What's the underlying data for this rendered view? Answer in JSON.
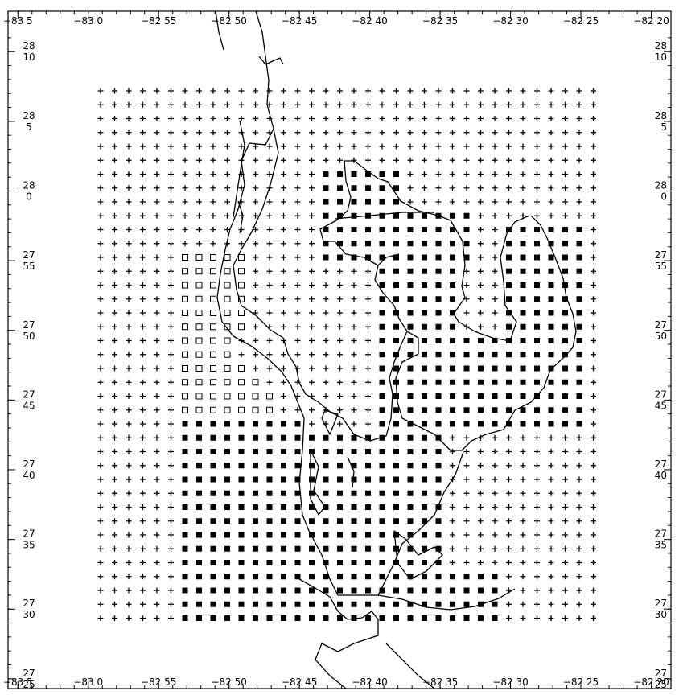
{
  "map": {
    "lon_labels": [
      {
        "text": "−83 5",
        "lon": -83.0833
      },
      {
        "text": "−83 0",
        "lon": -83.0
      },
      {
        "text": "−82 55",
        "lon": -82.9167
      },
      {
        "text": "−82 50",
        "lon": -82.8333
      },
      {
        "text": "−82 45",
        "lon": -82.75
      },
      {
        "text": "−82 40",
        "lon": -82.6667
      },
      {
        "text": "−82 35",
        "lon": -82.5833
      },
      {
        "text": "−82 30",
        "lon": -82.5
      },
      {
        "text": "−82 25",
        "lon": -82.4167
      },
      {
        "text": "−82 20",
        "lon": -82.3333
      }
    ],
    "lat_labels": [
      {
        "deg": "28",
        "min": "10",
        "lat": 28.1667
      },
      {
        "deg": "28",
        "min": "5",
        "lat": 28.0833
      },
      {
        "deg": "28",
        "min": "0",
        "lat": 28.0
      },
      {
        "deg": "27",
        "min": "55",
        "lat": 27.9167
      },
      {
        "deg": "27",
        "min": "50",
        "lat": 27.8333
      },
      {
        "deg": "27",
        "min": "45",
        "lat": 27.75
      },
      {
        "deg": "27",
        "min": "40",
        "lat": 27.6667
      },
      {
        "deg": "27",
        "min": "35",
        "lat": 27.5833
      },
      {
        "deg": "27",
        "min": "30",
        "lat": 27.5
      },
      {
        "deg": "27",
        "min": "25",
        "lat": 27.4167
      }
    ],
    "extent": {
      "lon_min": -83.095,
      "lon_max": -82.31,
      "lat_min": 27.405,
      "lat_max": 28.215
    },
    "grid": {
      "cols": 36,
      "rows": 39,
      "lon_start": -82.975,
      "lon_step": 0.016667,
      "lat_start": 28.108,
      "lat_step": -0.016667,
      "symbols": {
        "plus": "land/unused grid point",
        "filled": "filled square",
        "open": "open square"
      }
    },
    "colors": {
      "ink": "#000000",
      "background": "#ffffff"
    }
  }
}
